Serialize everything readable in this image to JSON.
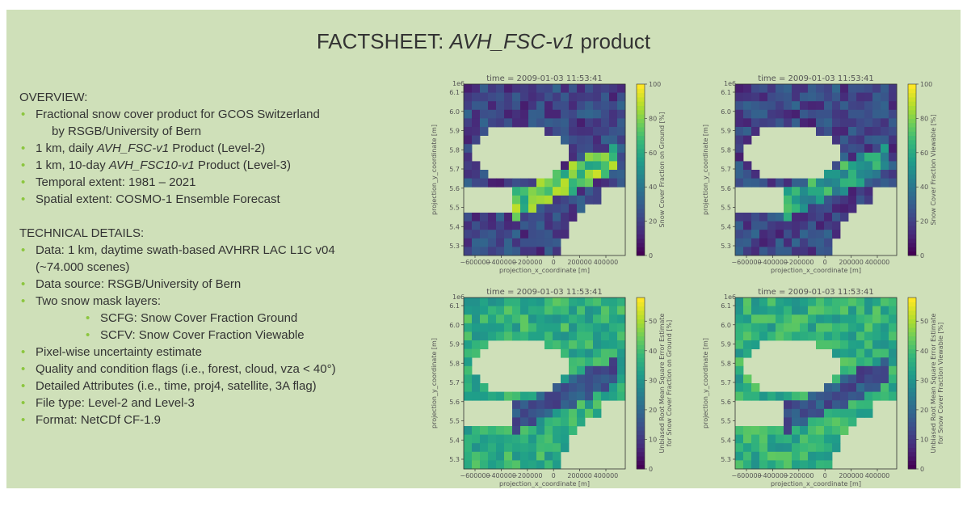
{
  "slide": {
    "title_prefix": "FACTSHEET: ",
    "title_product": "AVH_FSC-v1",
    "title_suffix": " product"
  },
  "overview": {
    "heading": "OVERVIEW:",
    "items": [
      {
        "pre": "Fractional snow cover product for GCOS Switzerland",
        "it": "",
        "post": ""
      },
      {
        "pre": "by RSGB/University of Bern",
        "it": "",
        "post": "",
        "cont": true
      },
      {
        "pre": "1 km, daily ",
        "it": "AVH_FSC-v1",
        "post": " Product (Level-2)"
      },
      {
        "pre": "1 km, 10-day ",
        "it": "AVH_FSC10-v1",
        "post": " Product (Level-3)"
      },
      {
        "pre": "Temporal extent: 1981 – 2021",
        "it": "",
        "post": ""
      },
      {
        "pre": "Spatial extent: COSMO-1 Ensemble Forecast",
        "it": "",
        "post": ""
      }
    ]
  },
  "technical": {
    "heading": "TECHNICAL DETAILS:",
    "items": [
      {
        "text": "Data: 1 km, daytime swath-based AVHRR LAC L1C v04",
        "level": 1
      },
      {
        "text": "(~74.000 scenes)",
        "level": 1,
        "cont": true
      },
      {
        "text": "Data source: RSGB/University of Bern",
        "level": 1
      },
      {
        "text": "Two snow mask layers:",
        "level": 1
      },
      {
        "text": "SCFG: Snow Cover Fraction Ground",
        "level": 2
      },
      {
        "text": "SCFV: Snow Cover Fraction Viewable",
        "level": 2
      },
      {
        "text": "Pixel-wise uncertainty estimate",
        "level": 1
      },
      {
        "text": "Quality and condition flags (i.e., forest, cloud, vza < 40°)",
        "level": 1
      },
      {
        "text": "Detailed Attributes (i.e., time, proj4, satellite, 3A flag)",
        "level": 1
      },
      {
        "text": "File type: Level-2 and Level-3",
        "level": 1
      },
      {
        "text": "Format: NetCDf CF-1.9",
        "level": 1
      }
    ]
  },
  "colors": {
    "bullet": "#8cc63f",
    "background": "#cfe0b9"
  },
  "chart_data": [
    {
      "type": "heatmap",
      "title": "time = 2009-01-03 11:53:41",
      "xlabel": "projection_x_coordinate [m]",
      "ylabel": "projection_y_coordinate [m]",
      "y_multiplier": "1e6",
      "x_ticks": [
        "−600000",
        "−400000",
        "−200000",
        "0",
        "200000",
        "400000"
      ],
      "y_ticks": [
        "5.3",
        "5.4",
        "5.5",
        "5.6",
        "5.7",
        "5.8",
        "5.9",
        "6.0",
        "6.1"
      ],
      "colorbar_label": "Snow Cover Fraction on Ground [%]",
      "colorbar_ticks": [
        "0",
        "20",
        "40",
        "60",
        "80",
        "100"
      ],
      "colorbar_range": [
        0,
        100
      ]
    },
    {
      "type": "heatmap",
      "title": "time = 2009-01-03 11:53:41",
      "xlabel": "projection_x_coordinate [m]",
      "ylabel": "projection_y_coordinate [m]",
      "y_multiplier": "1e6",
      "x_ticks": [
        "−600000",
        "−400000",
        "−200000",
        "0",
        "200000",
        "400000"
      ],
      "y_ticks": [
        "5.3",
        "5.4",
        "5.5",
        "5.6",
        "5.7",
        "5.8",
        "5.9",
        "6.0",
        "6.1"
      ],
      "colorbar_label": "Snow Cover Fraction Viewable [%]",
      "colorbar_ticks": [
        "0",
        "20",
        "40",
        "60",
        "80",
        "100"
      ],
      "colorbar_range": [
        0,
        100
      ]
    },
    {
      "type": "heatmap",
      "title": "time = 2009-01-03 11:53:41",
      "xlabel": "projection_x_coordinate [m]",
      "ylabel": "projection_y_coordinate [m]",
      "y_multiplier": "1e6",
      "x_ticks": [
        "−600000",
        "−400000",
        "−200000",
        "0",
        "200000",
        "400000"
      ],
      "y_ticks": [
        "5.3",
        "5.4",
        "5.5",
        "5.6",
        "5.7",
        "5.8",
        "5.9",
        "6.0",
        "6.1"
      ],
      "colorbar_label": "Unbiased Root Mean Square Error Estimate for Snow Cover Fraction on Ground [%]",
      "colorbar_ticks": [
        "0",
        "10",
        "20",
        "30",
        "40",
        "50"
      ],
      "colorbar_range": [
        0,
        58
      ]
    },
    {
      "type": "heatmap",
      "title": "time = 2009-01-03 11:53:41",
      "xlabel": "projection_x_coordinate [m]",
      "ylabel": "projection_y_coordinate [m]",
      "y_multiplier": "1e6",
      "x_ticks": [
        "−600000",
        "−400000",
        "−200000",
        "0",
        "200000",
        "400000"
      ],
      "y_ticks": [
        "5.3",
        "5.4",
        "5.5",
        "5.6",
        "5.7",
        "5.8",
        "5.9",
        "6.0",
        "6.1"
      ],
      "colorbar_label": "Unbiased Root Mean Square Error Estimate for Snow Cover Fraction Viewable [%]",
      "colorbar_ticks": [
        "0",
        "10",
        "20",
        "30",
        "40",
        "50"
      ],
      "colorbar_range": [
        0,
        58
      ]
    }
  ]
}
